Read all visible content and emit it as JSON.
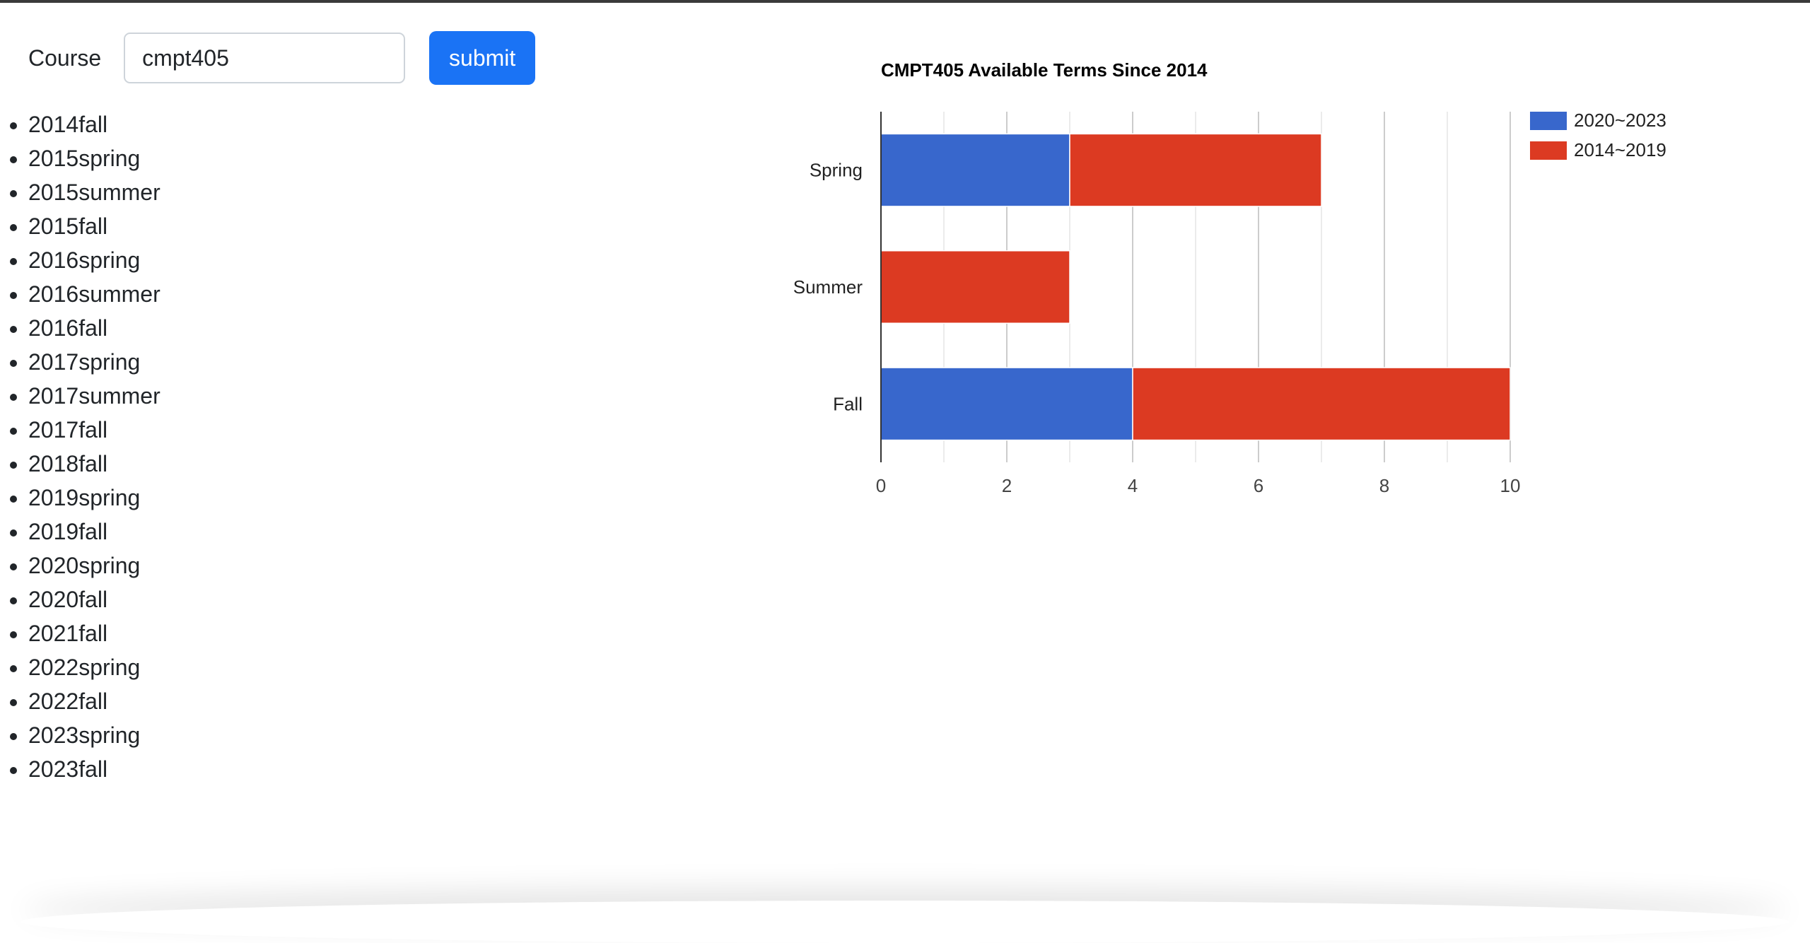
{
  "form": {
    "course_label": "Course",
    "course_value": "cmpt405",
    "submit_label": "submit"
  },
  "terms": [
    "2014fall",
    "2015spring",
    "2015summer",
    "2015fall",
    "2016spring",
    "2016summer",
    "2016fall",
    "2017spring",
    "2017summer",
    "2017fall",
    "2018fall",
    "2019spring",
    "2019fall",
    "2020spring",
    "2020fall",
    "2021fall",
    "2022spring",
    "2022fall",
    "2023spring",
    "2023fall"
  ],
  "chart_data": {
    "type": "bar",
    "orientation": "horizontal",
    "stacked": true,
    "title": "CMPT405 Available Terms Since 2014",
    "categories": [
      "Spring",
      "Summer",
      "Fall"
    ],
    "series": [
      {
        "name": "2020~2023",
        "values": [
          3,
          0,
          4
        ],
        "color": "#3867cc"
      },
      {
        "name": "2014~2019",
        "values": [
          4,
          3,
          6
        ],
        "color": "#dc3a22"
      }
    ],
    "xlim": [
      0,
      10
    ],
    "xticks": [
      0,
      2,
      4,
      6,
      8,
      10
    ],
    "grid": true,
    "legend": "right"
  }
}
